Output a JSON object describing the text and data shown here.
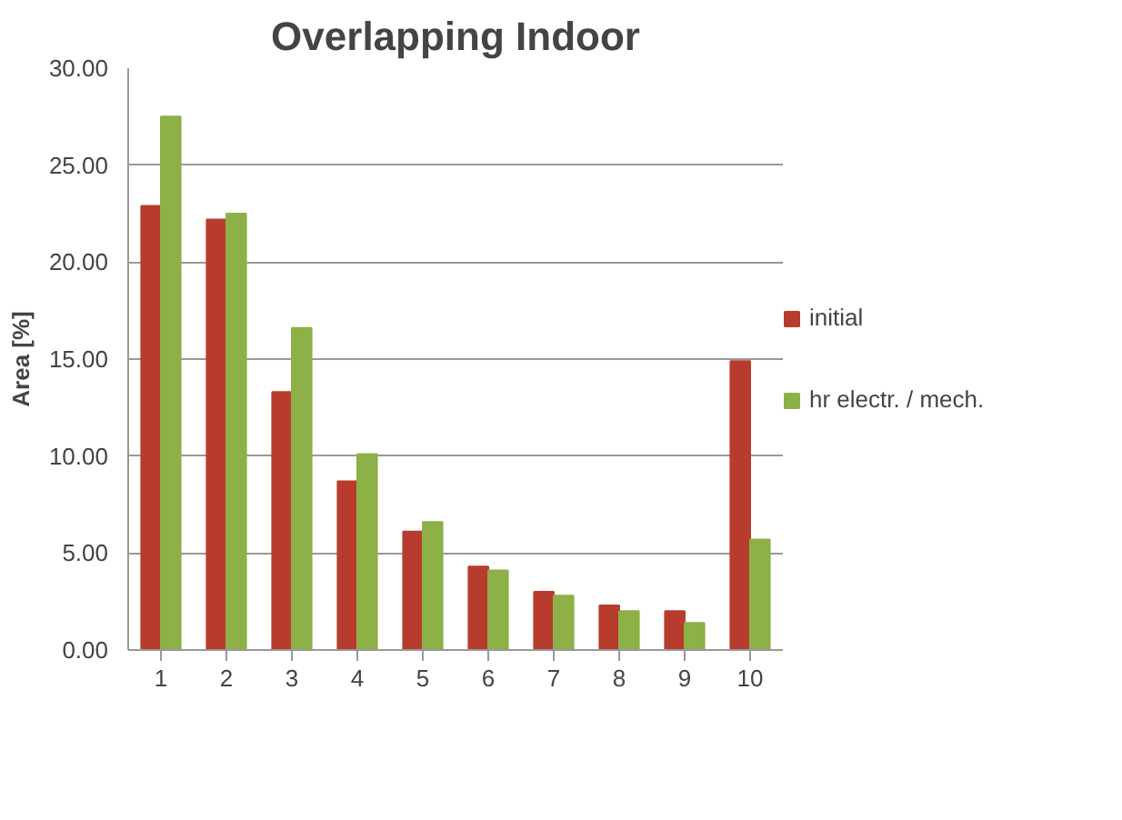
{
  "chart_data": {
    "type": "bar",
    "title": "Overlapping Indoor",
    "ylabel": "Area [%]",
    "categories": [
      "1",
      "2",
      "3",
      "4",
      "5",
      "6",
      "7",
      "8",
      "9",
      "10"
    ],
    "series": [
      {
        "name": "initial",
        "color": "#b83c2e",
        "values": [
          22.9,
          22.2,
          13.3,
          8.7,
          6.1,
          4.3,
          3.0,
          2.3,
          2.0,
          14.9
        ]
      },
      {
        "name": "hr electr. / mech.",
        "color": "#8db146",
        "values": [
          27.5,
          22.5,
          16.6,
          10.1,
          6.6,
          4.1,
          2.8,
          2.0,
          1.4,
          5.7
        ]
      }
    ],
    "ylim": [
      0,
      30
    ],
    "yticks": [
      {
        "value": 0,
        "label": "0.00"
      },
      {
        "value": 5,
        "label": "5.00"
      },
      {
        "value": 10,
        "label": "10.00"
      },
      {
        "value": 15,
        "label": "15.00"
      },
      {
        "value": 20,
        "label": "20.00"
      },
      {
        "value": 25,
        "label": "25.00"
      },
      {
        "value": 30,
        "label": "30.00"
      }
    ],
    "grid": "y",
    "legend": "right"
  }
}
